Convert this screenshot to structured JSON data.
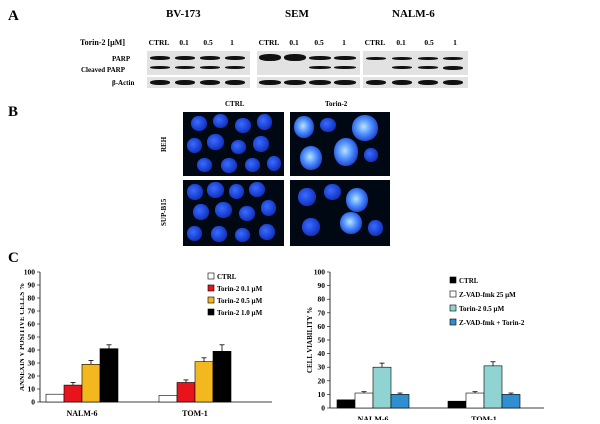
{
  "panels": {
    "a": "A",
    "b": "B",
    "c": "C"
  },
  "panel_a": {
    "treatment_label": "Torin-2  [µM]",
    "cell_lines": [
      "BV-173",
      "SEM",
      "NALM-6"
    ],
    "lanes": [
      "CTRL",
      "0.1",
      "0.5",
      "1"
    ],
    "row_labels": [
      "PARP",
      "Cleaved  PARP",
      "β-Actin"
    ]
  },
  "panel_b": {
    "columns": [
      "CTRL",
      "Torin-2"
    ],
    "rows": [
      "REH",
      "SUP-B15"
    ]
  },
  "colors": {
    "ctrl": "#ffffff",
    "torin01": "#e8141c",
    "torin05": "#f2b81e",
    "torin10": "#000000",
    "zvad": "#ffffff",
    "zvad_torin": "#2f8fd0",
    "torin05_right": "#8fd3d3",
    "ctrl_right": "#000000"
  },
  "chart_data": [
    {
      "type": "bar",
      "ylabel": "ANNEXIN V POSITIVE CELLS %",
      "ylim": [
        0,
        100
      ],
      "yticks": [
        0,
        10,
        20,
        30,
        40,
        50,
        60,
        70,
        80,
        90,
        100
      ],
      "categories": [
        "NALM-6",
        "TOM-1"
      ],
      "legend_position": "top-right",
      "series": [
        {
          "name": "CTRL",
          "values": [
            6,
            5
          ],
          "errors": [
            0,
            0
          ],
          "color": "#ffffff"
        },
        {
          "name": "Torin-2 0.1 µM",
          "values": [
            13,
            15
          ],
          "errors": [
            2,
            2
          ],
          "color": "#e8141c"
        },
        {
          "name": "Torin-2 0.5 µM",
          "values": [
            29,
            31
          ],
          "errors": [
            3,
            3
          ],
          "color": "#f2b81e"
        },
        {
          "name": "Torin-2 1.0 µM",
          "values": [
            41,
            39
          ],
          "errors": [
            3,
            5
          ],
          "color": "#000000"
        }
      ]
    },
    {
      "type": "bar",
      "ylabel": "CELL VIABILITY %",
      "ylim": [
        0,
        100
      ],
      "yticks": [
        0,
        10,
        20,
        30,
        40,
        50,
        60,
        70,
        80,
        90,
        100
      ],
      "categories": [
        "NALM-6",
        "TOM-1"
      ],
      "legend_position": "top-right",
      "series": [
        {
          "name": "CTRL",
          "values": [
            6,
            5
          ],
          "errors": [
            0,
            0
          ],
          "color": "#000000"
        },
        {
          "name": "Z-VAD-fmk 25 µM",
          "values": [
            11,
            11
          ],
          "errors": [
            1,
            1
          ],
          "color": "#ffffff"
        },
        {
          "name": "Torin-2 0.5 µM",
          "values": [
            30,
            31
          ],
          "errors": [
            3,
            3
          ],
          "color": "#8fd3d3"
        },
        {
          "name": "Z-VAD-fmk + Torin-2",
          "values": [
            10,
            10
          ],
          "errors": [
            1,
            1
          ],
          "color": "#2f8fd0"
        }
      ]
    }
  ]
}
